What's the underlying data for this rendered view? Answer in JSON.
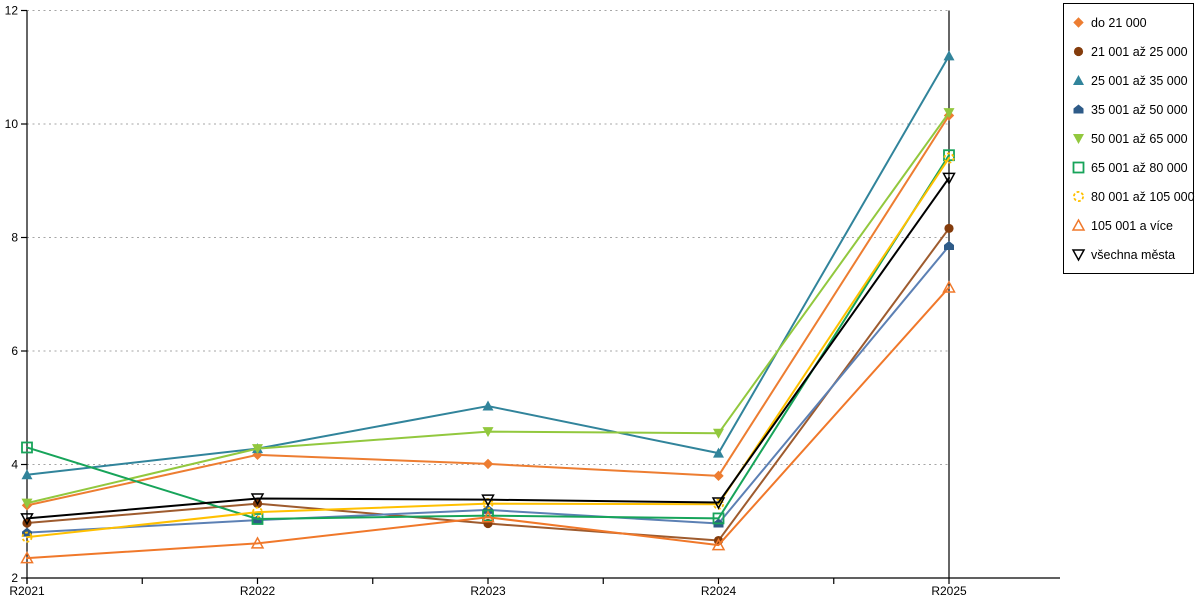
{
  "chart_data": {
    "type": "line",
    "title": "",
    "x_labels": [
      "R2021",
      "R2022",
      "R2023",
      "R2024",
      "R2025"
    ],
    "y_ticks": [
      2,
      4,
      6,
      8,
      10,
      12
    ],
    "ylim": [
      2,
      12
    ],
    "grid": "horizontal-dotted",
    "grid_color": "#a6a6a6",
    "axis_color": "#000000",
    "legend_position": "right",
    "series": [
      {
        "name": "do 21 000",
        "marker": "diamond",
        "fill": "filled",
        "color": "#ED7D31",
        "line_color": "#ED7D31",
        "values": [
          3.28,
          4.17,
          4.01,
          3.8,
          10.15
        ]
      },
      {
        "name": "21 001 až 25 000",
        "marker": "circle",
        "fill": "filled",
        "color": "#843C0C",
        "line_color": "#9E5B2E",
        "values": [
          2.97,
          3.31,
          2.96,
          2.66,
          8.16
        ]
      },
      {
        "name": "25 001 až 35 000",
        "marker": "triangle-up",
        "fill": "filled",
        "color": "#31849B",
        "line_color": "#31849B",
        "values": [
          3.82,
          4.28,
          5.03,
          4.2,
          11.2
        ]
      },
      {
        "name": "35 001 až 50 000",
        "marker": "pentagon",
        "fill": "filled",
        "color": "#2E5B88",
        "line_color": "#5C80B4",
        "values": [
          2.8,
          3.02,
          3.2,
          2.96,
          7.85
        ]
      },
      {
        "name": "50 001 až 65 000",
        "marker": "triangle-down",
        "fill": "filled",
        "color": "#92C83E",
        "line_color": "#92C83E",
        "values": [
          3.32,
          4.28,
          4.58,
          4.55,
          10.2
        ]
      },
      {
        "name": "65 001 až 80 000",
        "marker": "square",
        "fill": "open",
        "color": "#17A45A",
        "line_color": "#17A45A",
        "values": [
          4.3,
          3.04,
          3.1,
          3.05,
          9.45
        ]
      },
      {
        "name": "80 001 až 105 000",
        "marker": "circle-dashed",
        "fill": "open",
        "color": "#FFC000",
        "line_color": "#FFC000",
        "values": [
          2.72,
          3.16,
          3.31,
          3.3,
          9.4
        ]
      },
      {
        "name": "105 001 a více",
        "marker": "triangle-up",
        "fill": "open",
        "color": "#F0782A",
        "line_color": "#F0782A",
        "values": [
          2.35,
          2.61,
          3.07,
          2.58,
          7.12
        ]
      },
      {
        "name": "všechna města",
        "marker": "triangle-down",
        "fill": "open",
        "color": "#000000",
        "line_color": "#000000",
        "values": [
          3.05,
          3.4,
          3.38,
          3.33,
          9.05
        ]
      }
    ]
  }
}
